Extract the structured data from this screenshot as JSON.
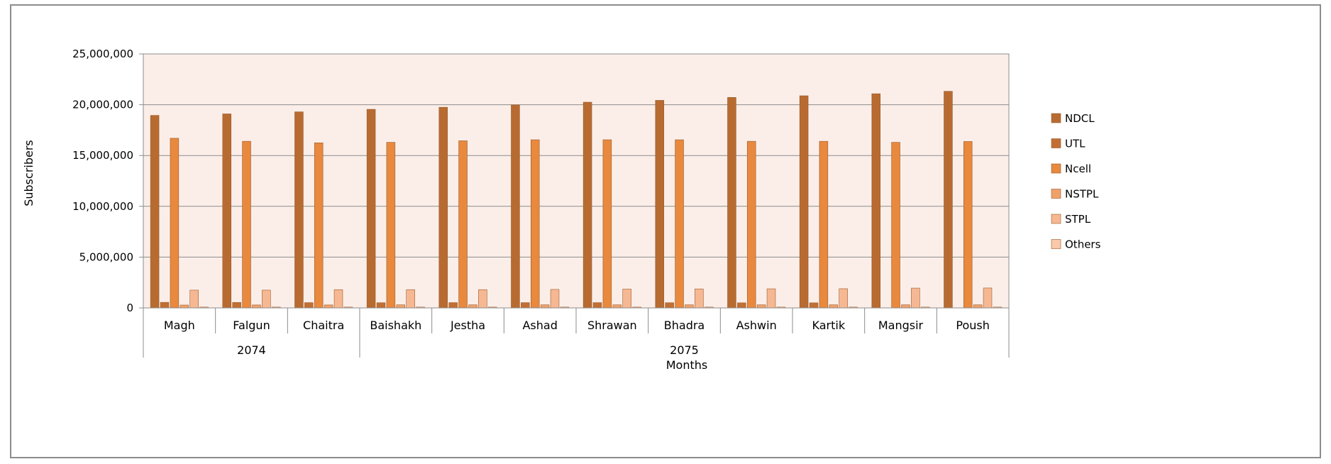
{
  "chart_data": {
    "type": "bar",
    "xlabel": "Months",
    "ylabel": "Subscribers",
    "ylim": [
      0,
      25000000
    ],
    "yticks": [
      0,
      5000000,
      10000000,
      15000000,
      20000000,
      25000000
    ],
    "ytick_labels": [
      "0",
      "5,000,000",
      "10,000,000",
      "15,000,000",
      "20,000,000",
      "25,000,000"
    ],
    "grid": true,
    "legend_position": "right",
    "categories": [
      "Magh",
      "Falgun",
      "Chaitra",
      "Baishakh",
      "Jestha",
      "Ashad",
      "Shrawan",
      "Bhadra",
      "Ashwin",
      "Kartik",
      "Mangsir",
      "Poush"
    ],
    "groups": [
      {
        "label": "2074",
        "start": 0,
        "end": 2
      },
      {
        "label": "2075",
        "start": 3,
        "end": 11
      }
    ],
    "series": [
      {
        "name": "NDCL",
        "color": "#b86b31",
        "values": [
          18950000,
          19100000,
          19300000,
          19550000,
          19750000,
          19980000,
          20250000,
          20430000,
          20720000,
          20880000,
          21080000,
          21320000
        ]
      },
      {
        "name": "UTL",
        "color": "#c26f33",
        "values": [
          550000,
          540000,
          520000,
          510000,
          520000,
          520000,
          520000,
          510000,
          500000,
          500000,
          0,
          0
        ]
      },
      {
        "name": "Ncell",
        "color": "#e8893e",
        "values": [
          16700000,
          16400000,
          16250000,
          16300000,
          16450000,
          16550000,
          16550000,
          16550000,
          16400000,
          16400000,
          16300000,
          16380000
        ]
      },
      {
        "name": "NSTPL",
        "color": "#f0a16a",
        "values": [
          280000,
          290000,
          290000,
          300000,
          300000,
          300000,
          300000,
          300000,
          300000,
          300000,
          300000,
          300000
        ]
      },
      {
        "name": "STPL",
        "color": "#f6b892",
        "values": [
          1750000,
          1750000,
          1800000,
          1800000,
          1800000,
          1820000,
          1850000,
          1870000,
          1880000,
          1890000,
          1950000,
          1960000
        ]
      },
      {
        "name": "Others",
        "color": "#f9c9aa",
        "values": [
          80000,
          80000,
          80000,
          80000,
          80000,
          80000,
          80000,
          80000,
          80000,
          80000,
          80000,
          80000
        ]
      }
    ],
    "colors": {
      "plot_background": "#fbeee9",
      "gridline": "#8c8c8c",
      "bar_stroke": "#9a5a2a"
    }
  }
}
